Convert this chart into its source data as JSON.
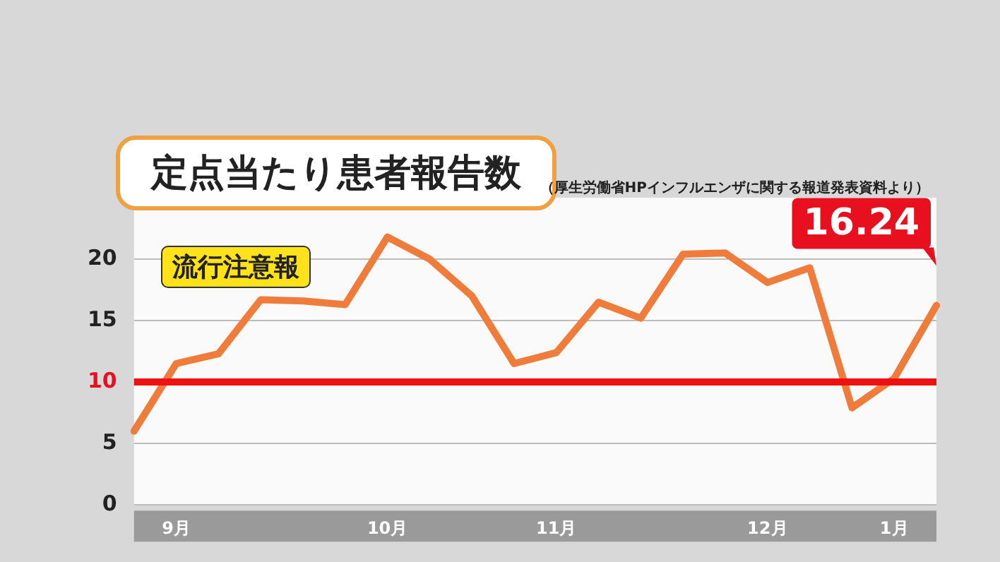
{
  "chart_data": {
    "type": "line",
    "title": "定点当たり患者報告数",
    "annotations": [
      "流行注意報",
      "（厚生労働省HPインフルエンザに関する報道発表資料より）"
    ],
    "categories": [
      null,
      "9月",
      null,
      null,
      null,
      null,
      "10月",
      null,
      null,
      null,
      "11月",
      null,
      null,
      null,
      null,
      "12月",
      null,
      null,
      "1月",
      null
    ],
    "series": [
      {
        "color": "#f07c3c",
        "values": [
          6.0,
          11.5,
          12.3,
          16.7,
          16.6,
          16.3,
          21.8,
          20.0,
          17.0,
          11.5,
          12.4,
          16.5,
          15.2,
          20.4,
          20.5,
          18.1,
          19.3,
          7.9,
          10.3,
          16.24
        ],
        "value_labels": [
          null,
          null,
          null,
          null,
          null,
          null,
          null,
          null,
          null,
          null,
          null,
          null,
          null,
          null,
          null,
          null,
          null,
          null,
          null,
          "16.24"
        ]
      }
    ],
    "ylim": [
      0,
      25
    ],
    "yticks": [
      0,
      5,
      10,
      15,
      20
    ],
    "grid": "y",
    "marker": "none",
    "line_style": "solid",
    "ref_lines": [
      {
        "axis": "y",
        "value": 10,
        "color": "#ee1111"
      }
    ]
  }
}
